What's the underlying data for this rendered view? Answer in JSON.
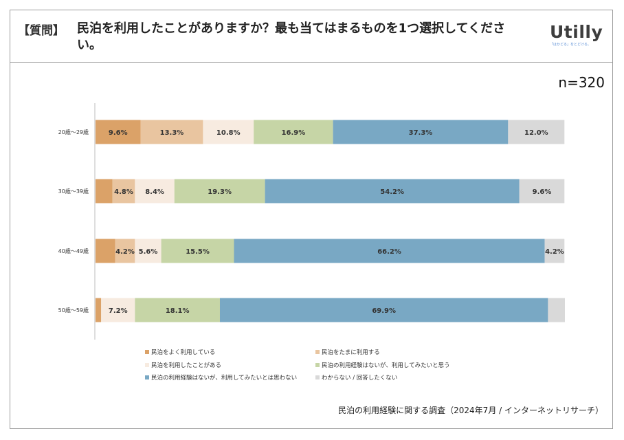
{
  "header": {
    "tag": "【質問】",
    "question": "民泊を利用したことがありますか？最も当てはまるものを1つ選択してください。",
    "logo": "Utilly",
    "logo_tagline": "「はかどる」をとどける。"
  },
  "sample_size": "n=320",
  "source_note": "民泊の利用経験に関する調査（2024年7月 / インターネットリサーチ）",
  "chart_data": {
    "type": "bar",
    "orientation": "horizontal",
    "stacked": true,
    "normalized": true,
    "categories": [
      "20歳～29歳",
      "30歳～39歳",
      "40歳～49歳",
      "50歳～59歳"
    ],
    "series": [
      {
        "name": "民泊をよく利用している",
        "color": "#dba268",
        "values": [
          9.6,
          3.6,
          4.2,
          1.2
        ],
        "labels": [
          "9.6%",
          "",
          "",
          ""
        ]
      },
      {
        "name": "民泊をたまに利用する",
        "color": "#e9c5a0",
        "values": [
          13.3,
          4.8,
          4.2,
          0.0
        ],
        "labels": [
          "13.3%",
          "4.8%",
          "4.2%",
          ""
        ]
      },
      {
        "name": "民泊を利用したことがある",
        "color": "#f7ebe0",
        "values": [
          10.8,
          8.4,
          5.6,
          7.2
        ],
        "labels": [
          "10.8%",
          "8.4%",
          "5.6%",
          "7.2%"
        ]
      },
      {
        "name": "民泊の利用経験はないが、利用してみたいと思う",
        "color": "#c6d5a6",
        "values": [
          16.9,
          19.3,
          15.5,
          18.1
        ],
        "labels": [
          "16.9%",
          "19.3%",
          "15.5%",
          "18.1%"
        ]
      },
      {
        "name": "民泊の利用経験はないが、利用してみたいとは思わない",
        "color": "#79a8c4",
        "values": [
          37.3,
          54.2,
          66.2,
          69.9
        ],
        "labels": [
          "37.3%",
          "54.2%",
          "66.2%",
          "69.9%"
        ]
      },
      {
        "name": "わからない / 回答したくない",
        "color": "#d9d9d9",
        "values": [
          12.0,
          9.6,
          4.2,
          3.6
        ],
        "labels": [
          "12.0%",
          "9.6%",
          "4.2%",
          ""
        ]
      }
    ],
    "xlim": [
      0,
      100
    ],
    "legend_position": "bottom"
  }
}
